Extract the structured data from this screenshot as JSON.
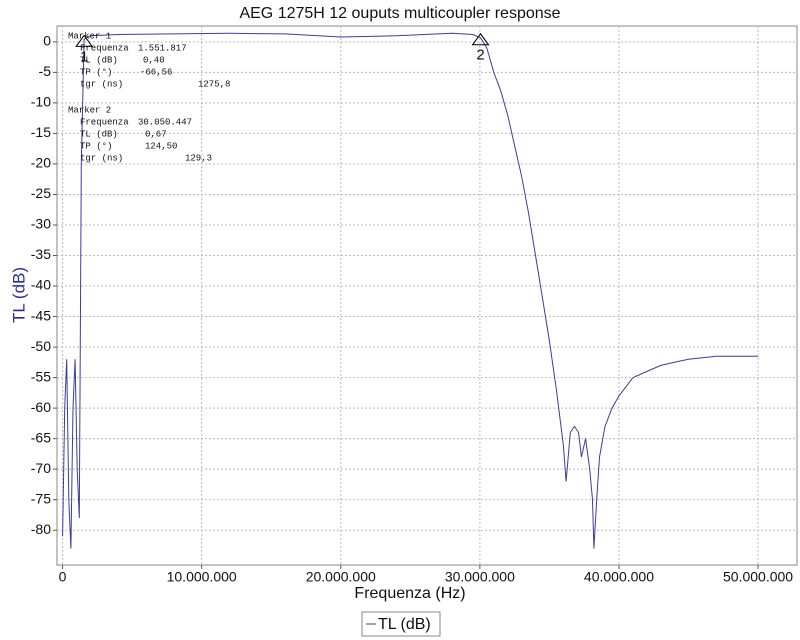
{
  "chart_data": {
    "type": "line",
    "title": "AEG 1275H 12 ouputs multicoupler response",
    "x_label": "Frequenza (Hz)",
    "y_label": "TL (dB)",
    "xlim": [
      -400000,
      52800000
    ],
    "ylim": [
      -85.7,
      2.6
    ],
    "xticks": [
      {
        "value": 0,
        "label": "0"
      },
      {
        "value": 10000000,
        "label": "10.000.000"
      },
      {
        "value": 20000000,
        "label": "20.000.000"
      },
      {
        "value": 30000000,
        "label": "30.000.000"
      },
      {
        "value": 40000000,
        "label": "40.000.000"
      },
      {
        "value": 50000000,
        "label": "50.000.000"
      }
    ],
    "yticks": [
      0,
      -5,
      -10,
      -15,
      -20,
      -25,
      -30,
      -35,
      -40,
      -45,
      -50,
      -55,
      -60,
      -65,
      -70,
      -75,
      -80
    ],
    "grid": true,
    "legend": "bottom",
    "series": [
      {
        "name": "TL (dB)",
        "color": "#3c3ca0",
        "x": [
          0,
          150000,
          300000,
          450000,
          600000,
          750000,
          900000,
          1050000,
          1200000,
          1350000,
          1551817,
          2000000,
          4000000,
          8000000,
          12000000,
          16000000,
          20000000,
          24000000,
          28000000,
          29500000,
          30050447,
          30500000,
          31000000,
          31500000,
          32000000,
          32500000,
          33000000,
          33500000,
          34000000,
          34500000,
          35000000,
          35500000,
          36000000,
          36200000,
          36500000,
          36800000,
          37100000,
          37300000,
          37600000,
          37900000,
          38100000,
          38200000,
          38400000,
          38600000,
          39000000,
          39500000,
          40000000,
          41000000,
          42000000,
          43000000,
          44000000,
          45000000,
          47000000,
          49000000,
          50000000
        ],
        "values": [
          -81,
          -60,
          -52,
          -75,
          -83,
          -60,
          -52,
          -70,
          -78,
          -20,
          0.4,
          1.0,
          1.2,
          1.3,
          1.4,
          1.3,
          0.8,
          1.0,
          1.4,
          1.2,
          0.67,
          -1,
          -5,
          -8,
          -12,
          -17,
          -22,
          -28,
          -35,
          -42,
          -49,
          -57,
          -66,
          -72,
          -64,
          -63,
          -64,
          -68,
          -65,
          -70,
          -75,
          -83,
          -75,
          -68,
          -63,
          -60,
          -58,
          -55,
          -54,
          -53,
          -52.5,
          -52,
          -51.5,
          -51.5,
          -51.5
        ]
      }
    ],
    "markers": [
      {
        "name": "1",
        "x": 1551817,
        "y": 0.4,
        "title": "Marker 1",
        "rows": [
          [
            "Frequenza",
            "1.551.817"
          ],
          [
            "TL (dB)",
            "0,40"
          ],
          [
            "TP (°)",
            "-66,56"
          ],
          [
            "tgr (ns)",
            "1275,8"
          ]
        ]
      },
      {
        "name": "2",
        "x": 30050447,
        "y": 0.67,
        "title": "Marker 2",
        "rows": [
          [
            "Frequenza",
            "30.050.447"
          ],
          [
            "TL (dB)",
            "0,67"
          ],
          [
            "TP (°)",
            "124,50"
          ],
          [
            "tgr (ns)",
            "129,3"
          ]
        ]
      }
    ]
  }
}
